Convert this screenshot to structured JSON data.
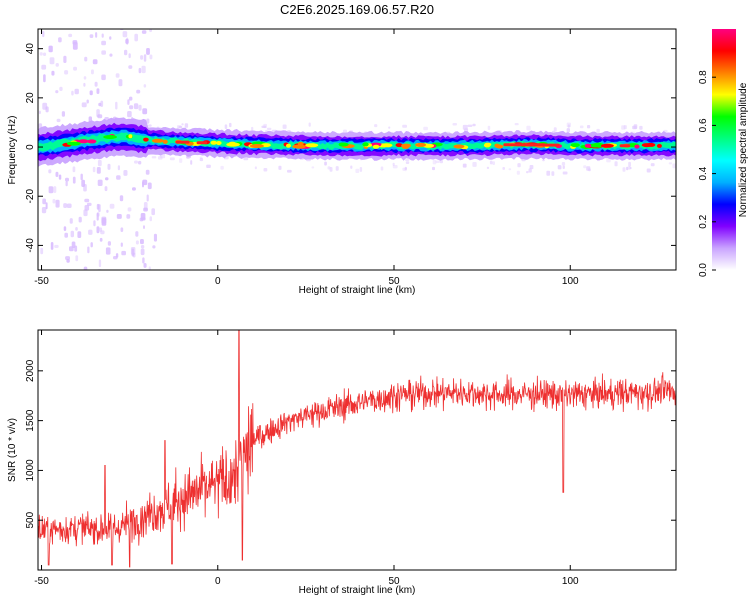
{
  "figure": {
    "title": "C2E6.2025.169.06.57.R20"
  },
  "chart_data": [
    {
      "type": "heatmap",
      "xlabel": "Height of straight line (km)",
      "ylabel": "Frequency (Hz)",
      "xlim": [
        -51,
        130
      ],
      "ylim": [
        -50,
        48
      ],
      "x_ticks": [
        -50,
        0,
        50,
        100
      ],
      "y_ticks": [
        -40,
        -20,
        0,
        20,
        40
      ],
      "grid": false,
      "colorbar": {
        "label": "Normalized spectral amplitude",
        "range": [
          0,
          1
        ],
        "ticks": [
          0.0,
          0.2,
          0.4,
          0.6,
          0.8
        ],
        "colormap": [
          "#ffffff",
          "#c9a3ff",
          "#8000ff",
          "#0000ff",
          "#00b0ff",
          "#00ffff",
          "#00ff80",
          "#00ff00",
          "#ffff00",
          "#ff8000",
          "#ff0000",
          "#ff0080"
        ]
      },
      "band_center_hz": [
        [
          -51,
          0
        ],
        [
          -45,
          1
        ],
        [
          -40,
          2
        ],
        [
          -35,
          3
        ],
        [
          -30,
          4
        ],
        [
          -25,
          4
        ],
        [
          -20,
          3
        ],
        [
          -15,
          2.5
        ],
        [
          -10,
          2
        ],
        [
          0,
          1.5
        ],
        [
          10,
          1
        ],
        [
          30,
          0.5
        ],
        [
          50,
          0.5
        ],
        [
          70,
          0.5
        ],
        [
          90,
          1
        ],
        [
          100,
          0.5
        ],
        [
          130,
          0.5
        ]
      ]
    },
    {
      "type": "line",
      "xlabel": "Height of straight line (km)",
      "ylabel": "SNR (10 * v/v)",
      "xlim": [
        -51,
        130
      ],
      "ylim": [
        0,
        2410
      ],
      "x_ticks": [
        -50,
        0,
        50,
        100
      ],
      "y_ticks": [
        500,
        1000,
        1500,
        2000
      ],
      "grid": false,
      "series_color": "#ee3030",
      "trend": [
        [
          -51,
          400
        ],
        [
          -40,
          420
        ],
        [
          -30,
          400
        ],
        [
          -20,
          560
        ],
        [
          -10,
          720
        ],
        [
          0,
          860
        ],
        [
          5,
          950
        ],
        [
          10,
          1300
        ],
        [
          20,
          1500
        ],
        [
          30,
          1600
        ],
        [
          40,
          1680
        ],
        [
          50,
          1750
        ],
        [
          60,
          1780
        ],
        [
          70,
          1780
        ],
        [
          80,
          1760
        ],
        [
          90,
          1770
        ],
        [
          100,
          1760
        ],
        [
          110,
          1770
        ],
        [
          120,
          1780
        ],
        [
          130,
          1800
        ]
      ],
      "spikes": [
        [
          -48,
          50
        ],
        [
          -32,
          1050
        ],
        [
          -30,
          50
        ],
        [
          -25,
          30
        ],
        [
          -15,
          1300
        ],
        [
          -13,
          60
        ],
        [
          6,
          2410
        ],
        [
          7,
          100
        ],
        [
          12,
          1450
        ],
        [
          98,
          780
        ],
        [
          103,
          1800
        ]
      ]
    }
  ]
}
